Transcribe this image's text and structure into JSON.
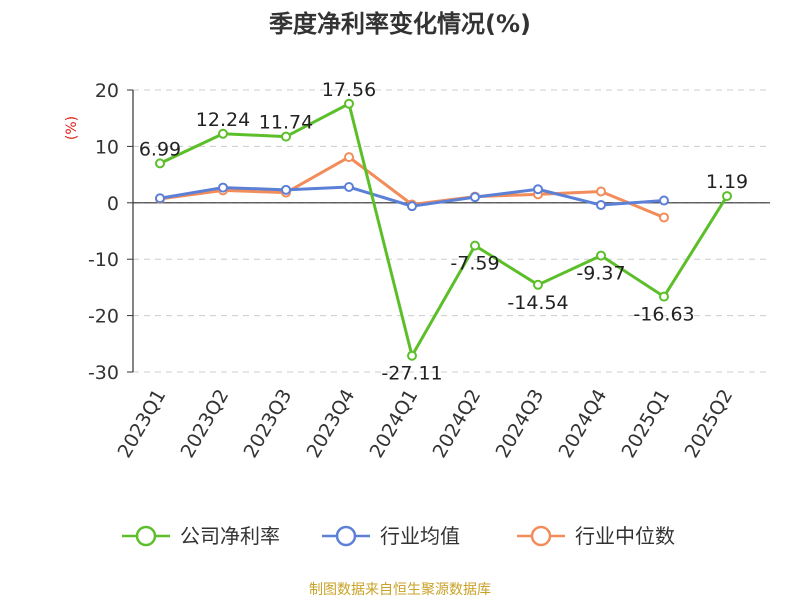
{
  "chart_data": {
    "type": "line",
    "title": "季度净利率变化情况(%)",
    "ylabel": "(%)",
    "categories": [
      "2023Q1",
      "2023Q2",
      "2023Q3",
      "2023Q4",
      "2024Q1",
      "2024Q2",
      "2024Q3",
      "2024Q4",
      "2025Q1",
      "2025Q2"
    ],
    "ylim": [
      -30,
      20
    ],
    "yticks": [
      20,
      10,
      0,
      -10,
      -20,
      -30
    ],
    "grid": true,
    "legend_position": "bottom",
    "series": [
      {
        "name": "公司净利率",
        "color": "#5cbf2a",
        "values": [
          6.99,
          12.24,
          11.74,
          17.56,
          -27.11,
          -7.59,
          -14.54,
          -9.37,
          -16.63,
          1.19
        ],
        "labels": [
          "6.99",
          "12.24",
          "11.74",
          "17.56",
          "-27.11",
          "-7.59",
          "-14.54",
          "-9.37",
          "-16.63",
          "1.19"
        ]
      },
      {
        "name": "行业均值",
        "color": "#5b80d6",
        "values": [
          0.8,
          2.7,
          2.3,
          2.8,
          -0.6,
          1.0,
          2.4,
          -0.4,
          0.4,
          null
        ]
      },
      {
        "name": "行业中位数",
        "color": "#f28c5a",
        "values": [
          0.7,
          2.2,
          1.8,
          8.1,
          -0.3,
          1.1,
          1.5,
          2.0,
          -2.6,
          null
        ]
      }
    ]
  },
  "source": "制图数据来自恒生聚源数据库",
  "colors": {
    "source_text": "#c9a227",
    "ylabel_text": "#e0211a",
    "grid": "#cccccc",
    "axis": "#333333"
  }
}
